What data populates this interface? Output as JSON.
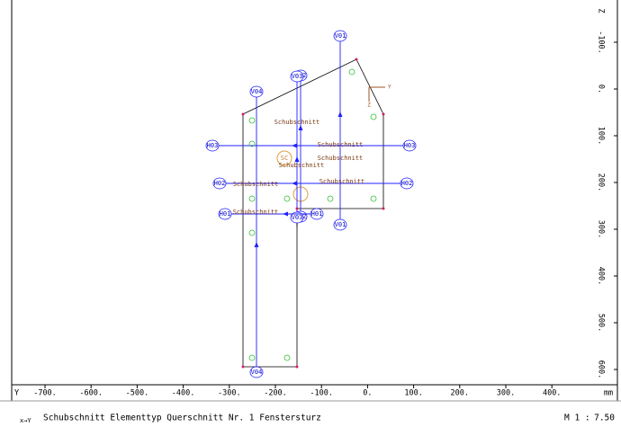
{
  "x_axis": {
    "title": "Y",
    "unit": "mm",
    "labels": [
      "-700.",
      "-600.",
      "-500.",
      "-400.",
      "-300.",
      "-200.",
      "-100.",
      "0.",
      "100.",
      "200.",
      "300.",
      "400."
    ]
  },
  "z_axis": {
    "title": "Z",
    "labels": [
      "-100.",
      "0.",
      "100.",
      "200.",
      "300.",
      "400.",
      "500.",
      "600."
    ]
  },
  "local_axes": {
    "y": "Y",
    "z": "Z"
  },
  "section_lines": [
    {
      "start_label": "V01",
      "end_label": "V01"
    },
    {
      "start_label": "V02",
      "end_label": "V02"
    },
    {
      "start_label": "V03",
      "end_label": "V03"
    },
    {
      "start_label": "V04",
      "end_label": "V04"
    },
    {
      "start_label": "H03",
      "end_label": "H03"
    },
    {
      "start_label": "H02",
      "end_label": "H02"
    },
    {
      "start_label": "H01",
      "end_label": "H01"
    }
  ],
  "centre_label": "SC",
  "annotations": [
    "Schubschnitt",
    "Schubschnitt",
    "Schubschnitt",
    "Schubschnitt",
    "Schubschnitt",
    "Schubschnitt",
    "Schubschnitt"
  ],
  "footer": {
    "axis_glyph": "x→Y",
    "description": "Schubschnitt Elementtyp Querschnitt Nr. 1 Fenstersturz",
    "scale_prefix": "M 1 :",
    "scale": "7.50"
  }
}
